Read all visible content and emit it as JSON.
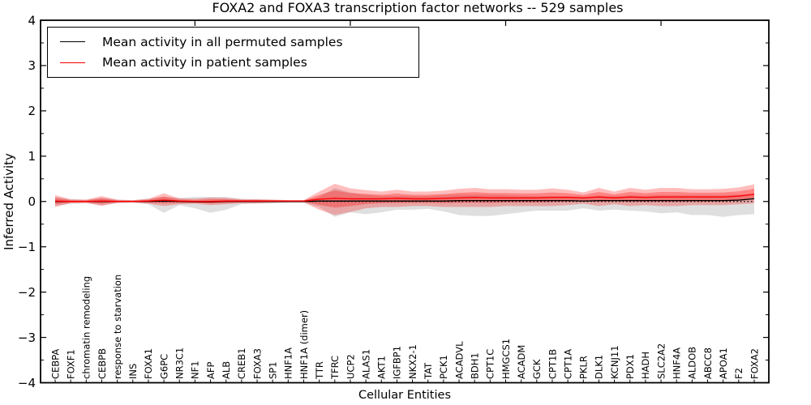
{
  "title": "FOXA2 and FOXA3 transcription factor networks -- 529 samples",
  "legend": {
    "items": [
      {
        "label": "Mean activity in all permuted samples",
        "color": "#000000"
      },
      {
        "label": "Mean activity in patient samples",
        "color": "#ff0000"
      }
    ]
  },
  "chart_data": {
    "type": "line",
    "title": "FOXA2 and FOXA3 transcription factor networks -- 529 samples",
    "xlabel": "Cellular Entities",
    "ylabel": "Inferred Activity",
    "ylim": [
      -4,
      4
    ],
    "yticks": [
      4,
      3,
      2,
      1,
      0,
      -1,
      -2,
      -3,
      -4
    ],
    "ytick_labels": [
      "4",
      "3",
      "2",
      "1",
      "0",
      "−1",
      "−2",
      "−3",
      "−4"
    ],
    "minor_ytick_step": 0.5,
    "grid": false,
    "legend_position": "upper left",
    "x_labels_rotation": 90,
    "categories": [
      "CEBPA",
      "FOXF1",
      "chromatin remodeling",
      "CEBPB",
      "response to starvation",
      "INS",
      "FOXA1",
      "G6PC",
      "NR3C1",
      "NF1",
      "AFP",
      "ALB",
      "CREB1",
      "FOXA3",
      "SP1",
      "HNF1A",
      "HNF1A (dimer)",
      "TTR",
      "TFRC",
      "UCP2",
      "ALAS1",
      "AKT1",
      "IGFBP1",
      "NKX2-1",
      "TAT",
      "PCK1",
      "ACADVL",
      "BDH1",
      "CPT1C",
      "HMGCS1",
      "ACADM",
      "GCK",
      "CPT1B",
      "CPT1A",
      "PKLR",
      "DLK1",
      "KCNJ11",
      "PDX1",
      "HADH",
      "SLC2A2",
      "HNF4A",
      "ALDOB",
      "ABCC8",
      "APOA1",
      "F2",
      "FOXA2"
    ],
    "series": [
      {
        "name": "Mean activity in all permuted samples",
        "color": "#000000",
        "style": "solid",
        "values": [
          0.0,
          0.0,
          0.0,
          0.0,
          0.0,
          0.0,
          0.0,
          0.01,
          0.0,
          -0.01,
          -0.01,
          0.0,
          0.0,
          0.0,
          0.0,
          0.0,
          0.0,
          0.01,
          0.01,
          0.01,
          0.01,
          0.01,
          0.01,
          0.01,
          0.01,
          0.01,
          0.02,
          0.02,
          0.02,
          0.02,
          0.02,
          0.02,
          0.02,
          0.02,
          0.01,
          0.02,
          0.02,
          0.02,
          0.02,
          0.02,
          0.02,
          0.02,
          0.02,
          0.02,
          0.03,
          0.06
        ]
      },
      {
        "name": "Mean activity in patient samples",
        "color": "#ff0000",
        "style": "solid",
        "values": [
          0.01,
          0.0,
          0.0,
          0.01,
          0.0,
          0.0,
          0.01,
          0.03,
          0.01,
          0.0,
          0.0,
          0.01,
          0.01,
          0.01,
          0.01,
          0.01,
          0.01,
          0.05,
          0.07,
          0.06,
          0.06,
          0.06,
          0.07,
          0.06,
          0.06,
          0.07,
          0.08,
          0.09,
          0.08,
          0.08,
          0.08,
          0.08,
          0.09,
          0.09,
          0.08,
          0.1,
          0.08,
          0.1,
          0.09,
          0.1,
          0.1,
          0.1,
          0.1,
          0.1,
          0.12,
          0.16
        ]
      }
    ],
    "bands": [
      {
        "name": "permuted samples range",
        "color": "#c0c0c0",
        "opacity": 0.5,
        "low": [
          -0.1,
          -0.05,
          -0.04,
          -0.08,
          -0.04,
          -0.03,
          -0.06,
          -0.25,
          -0.08,
          -0.15,
          -0.25,
          -0.18,
          -0.06,
          -0.05,
          -0.04,
          -0.03,
          -0.03,
          -0.12,
          -0.34,
          -0.24,
          -0.28,
          -0.24,
          -0.18,
          -0.18,
          -0.16,
          -0.22,
          -0.3,
          -0.32,
          -0.32,
          -0.28,
          -0.24,
          -0.2,
          -0.2,
          -0.2,
          -0.15,
          -0.2,
          -0.18,
          -0.2,
          -0.22,
          -0.26,
          -0.24,
          -0.3,
          -0.3,
          -0.34,
          -0.3,
          -0.28
        ],
        "high": [
          0.1,
          0.05,
          0.04,
          0.08,
          0.04,
          0.03,
          0.06,
          0.1,
          0.08,
          0.1,
          0.1,
          0.1,
          0.06,
          0.05,
          0.04,
          0.03,
          0.03,
          0.1,
          0.3,
          0.2,
          0.15,
          0.12,
          0.12,
          0.12,
          0.12,
          0.14,
          0.15,
          0.15,
          0.15,
          0.14,
          0.13,
          0.12,
          0.12,
          0.12,
          0.1,
          0.13,
          0.12,
          0.13,
          0.13,
          0.14,
          0.14,
          0.14,
          0.14,
          0.14,
          0.15,
          0.14
        ]
      },
      {
        "name": "patient samples range (outer)",
        "color": "#ff0000",
        "opacity": 0.26,
        "low": [
          -0.12,
          -0.04,
          -0.03,
          -0.1,
          -0.03,
          -0.02,
          -0.05,
          -0.1,
          -0.06,
          -0.05,
          -0.08,
          -0.06,
          -0.04,
          -0.04,
          -0.03,
          -0.02,
          -0.02,
          -0.18,
          -0.3,
          -0.23,
          -0.15,
          -0.12,
          -0.12,
          -0.1,
          -0.1,
          -0.12,
          -0.12,
          -0.12,
          -0.12,
          -0.1,
          -0.1,
          -0.1,
          -0.1,
          -0.08,
          -0.05,
          -0.1,
          -0.06,
          -0.1,
          -0.08,
          -0.1,
          -0.1,
          -0.08,
          -0.08,
          -0.08,
          -0.06,
          -0.04
        ],
        "high": [
          0.14,
          0.05,
          0.04,
          0.12,
          0.04,
          0.03,
          0.06,
          0.18,
          0.07,
          0.06,
          0.09,
          0.08,
          0.05,
          0.05,
          0.04,
          0.03,
          0.03,
          0.22,
          0.39,
          0.29,
          0.25,
          0.22,
          0.26,
          0.22,
          0.22,
          0.24,
          0.28,
          0.3,
          0.27,
          0.27,
          0.26,
          0.26,
          0.29,
          0.26,
          0.2,
          0.3,
          0.22,
          0.3,
          0.26,
          0.3,
          0.3,
          0.27,
          0.27,
          0.28,
          0.31,
          0.38
        ]
      },
      {
        "name": "patient samples range (inner)",
        "color": "#ff0000",
        "opacity": 0.3,
        "derived": "patient mean ± 0.55 × (outer band span)"
      }
    ],
    "zero_line": {
      "value": 0,
      "style": "dotted",
      "color": "#000000"
    }
  }
}
